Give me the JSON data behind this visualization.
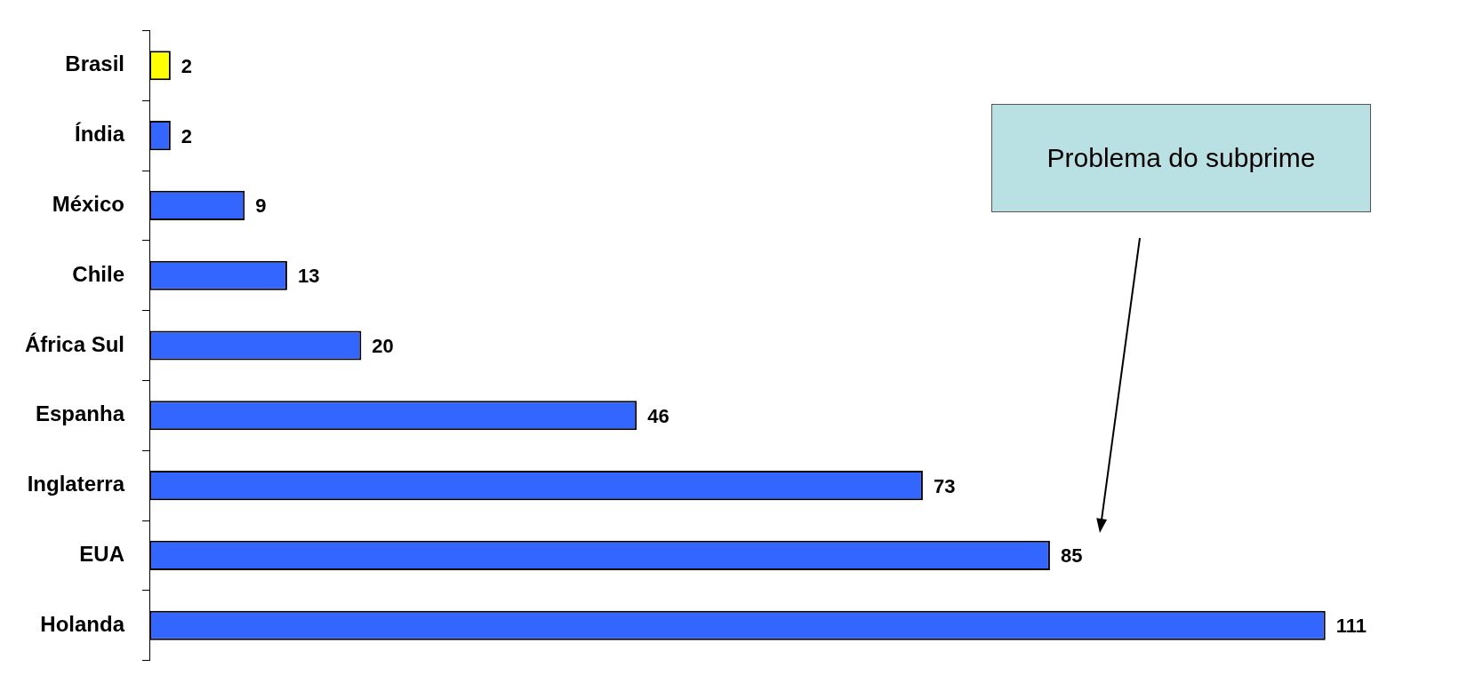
{
  "chart_data": {
    "type": "bar",
    "orientation": "horizontal",
    "categories": [
      "Brasil",
      "Índia",
      "México",
      "Chile",
      "África Sul",
      "Espanha",
      "Inglaterra",
      "EUA",
      "Holanda"
    ],
    "values": [
      2,
      2,
      9,
      13,
      20,
      46,
      73,
      85,
      111
    ],
    "colors": [
      "#ffff00",
      "#3366ff",
      "#3366ff",
      "#3366ff",
      "#3366ff",
      "#3366ff",
      "#3366ff",
      "#3366ff",
      "#3366ff"
    ],
    "data_labels": true,
    "grid": false,
    "legend": false,
    "annotations": [
      "Problema do subprime"
    ]
  }
}
